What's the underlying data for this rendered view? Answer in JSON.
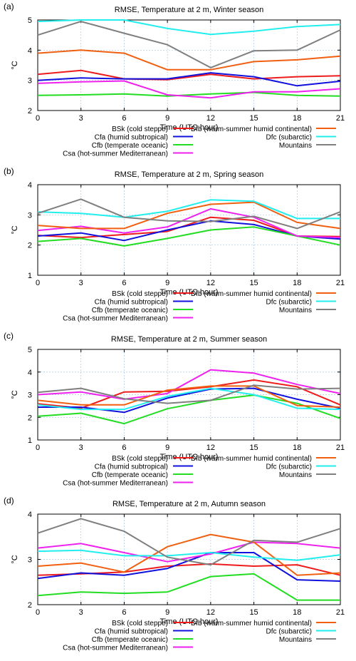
{
  "chart_data": [
    {
      "type": "line",
      "panel_label": "(a)",
      "title": "RMSE, Temperature at 2 m, Winter season",
      "xlabel": "Time (UTC hour)",
      "ylabel": "°C",
      "x": [
        0,
        3,
        6,
        9,
        12,
        15,
        18,
        21
      ],
      "xlim": [
        0,
        21
      ],
      "ylim": [
        2,
        5
      ],
      "yticks": [
        2,
        3,
        4,
        5
      ],
      "grid": true,
      "legend_position": "bottom",
      "series": [
        {
          "name": "BSk (cold steppe)",
          "color": "#ee1c1c",
          "values": [
            3.2,
            3.33,
            3.05,
            3.02,
            3.2,
            3.05,
            3.12,
            3.15
          ]
        },
        {
          "name": "Cfa (humid subtropical)",
          "color": "#1111dd",
          "values": [
            3.0,
            3.08,
            3.05,
            3.05,
            3.25,
            3.12,
            2.82,
            2.97
          ]
        },
        {
          "name": "Cfb (temperate oceanic)",
          "color": "#22dd22",
          "values": [
            2.5,
            2.52,
            2.55,
            2.48,
            2.55,
            2.6,
            2.5,
            2.48
          ]
        },
        {
          "name": "Csa (hot-summer Mediterranean)",
          "color": "#ee22ee",
          "values": [
            2.9,
            2.95,
            2.98,
            2.52,
            2.42,
            2.62,
            2.62,
            2.72
          ]
        },
        {
          "name": "Dfb (warm-summer humid continental)",
          "color": "#f06010",
          "values": [
            3.9,
            4.0,
            3.9,
            3.35,
            3.35,
            3.62,
            3.68,
            3.8
          ]
        },
        {
          "name": "Dfc (subarctic)",
          "color": "#22eeee",
          "values": [
            4.95,
            5.0,
            5.0,
            4.72,
            4.52,
            4.63,
            4.78,
            4.85
          ]
        },
        {
          "name": "Mountains",
          "color": "#7f7f7f",
          "values": [
            4.5,
            4.95,
            4.56,
            4.18,
            3.42,
            3.98,
            4.0,
            4.67
          ]
        }
      ]
    },
    {
      "type": "line",
      "panel_label": "(b)",
      "title": "RMSE, Temperature at 2 m, Spring season",
      "xlabel": "Time (UTC hour)",
      "ylabel": "°C",
      "x": [
        0,
        3,
        6,
        9,
        12,
        15,
        18,
        21
      ],
      "xlim": [
        0,
        21
      ],
      "ylim": [
        1,
        4
      ],
      "yticks": [
        1,
        2,
        3,
        4
      ],
      "grid": true,
      "legend_position": "bottom",
      "series": [
        {
          "name": "BSk (cold steppe)",
          "color": "#ee1c1c",
          "values": [
            2.32,
            2.25,
            2.35,
            2.45,
            2.92,
            2.82,
            2.3,
            2.28
          ]
        },
        {
          "name": "Cfa (humid subtropical)",
          "color": "#1111dd",
          "values": [
            2.3,
            2.4,
            2.15,
            2.5,
            2.8,
            2.68,
            2.3,
            2.2
          ]
        },
        {
          "name": "Cfb (temperate oceanic)",
          "color": "#22dd22",
          "values": [
            2.12,
            2.22,
            1.97,
            2.22,
            2.5,
            2.6,
            2.3,
            2.0
          ]
        },
        {
          "name": "Csa (hot-summer Mediterranean)",
          "color": "#ee22ee",
          "values": [
            2.48,
            2.62,
            2.4,
            2.6,
            3.2,
            2.92,
            2.3,
            2.25
          ]
        },
        {
          "name": "Dfb (warm-summer humid continental)",
          "color": "#f06010",
          "values": [
            2.65,
            2.55,
            2.55,
            3.05,
            3.35,
            3.42,
            2.75,
            2.55
          ]
        },
        {
          "name": "Dfc (subarctic)",
          "color": "#22eeee",
          "values": [
            3.1,
            3.05,
            2.92,
            3.12,
            3.5,
            3.45,
            2.88,
            2.88
          ]
        },
        {
          "name": "Mountains",
          "color": "#7f7f7f",
          "values": [
            3.05,
            3.52,
            2.92,
            2.8,
            2.78,
            2.95,
            2.55,
            3.1
          ]
        }
      ]
    },
    {
      "type": "line",
      "panel_label": "(c)",
      "title": "RMSE, Temperature at 2 m, Summer season",
      "xlabel": "Time (UTC hour)",
      "ylabel": "°C",
      "x": [
        0,
        3,
        6,
        9,
        12,
        15,
        18,
        21
      ],
      "xlim": [
        0,
        21
      ],
      "ylim": [
        1,
        5
      ],
      "yticks": [
        1,
        2,
        3,
        4,
        5
      ],
      "grid": true,
      "legend_position": "bottom",
      "series": [
        {
          "name": "BSk (cold steppe)",
          "color": "#ee1c1c",
          "values": [
            2.6,
            2.4,
            3.12,
            3.15,
            3.35,
            3.65,
            3.35,
            2.55
          ]
        },
        {
          "name": "Cfa (humid subtropical)",
          "color": "#1111dd",
          "values": [
            2.45,
            2.45,
            2.22,
            2.85,
            3.25,
            3.28,
            2.8,
            2.4
          ]
        },
        {
          "name": "Cfb (temperate oceanic)",
          "color": "#22dd22",
          "values": [
            2.05,
            2.18,
            1.72,
            2.38,
            2.75,
            2.98,
            2.62,
            1.95
          ]
        },
        {
          "name": "Csa (hot-summer Mediterranean)",
          "color": "#ee22ee",
          "values": [
            3.0,
            3.12,
            2.8,
            3.05,
            4.1,
            3.95,
            3.45,
            3.05
          ]
        },
        {
          "name": "Dfb (warm-summer humid continental)",
          "color": "#f06010",
          "values": [
            2.75,
            2.55,
            2.55,
            3.2,
            3.38,
            3.38,
            2.52,
            2.45
          ]
        },
        {
          "name": "Dfc (subarctic)",
          "color": "#22eeee",
          "values": [
            2.55,
            2.35,
            2.35,
            2.92,
            3.28,
            3.0,
            2.4,
            2.35
          ]
        },
        {
          "name": "Mountains",
          "color": "#7f7f7f",
          "values": [
            3.1,
            3.28,
            2.82,
            2.62,
            2.75,
            3.42,
            3.25,
            3.28
          ]
        }
      ]
    },
    {
      "type": "line",
      "panel_label": "(d)",
      "title": "RMSE, Temperature at 2 m, Autumn season",
      "xlabel": "Time (UTC hour)",
      "ylabel": "°C",
      "x": [
        0,
        3,
        6,
        9,
        12,
        15,
        18,
        21
      ],
      "xlim": [
        0,
        21
      ],
      "ylim": [
        2,
        4
      ],
      "yticks": [
        2,
        3,
        4
      ],
      "grid": true,
      "legend_position": "bottom",
      "series": [
        {
          "name": "BSk (cold steppe)",
          "color": "#ee1c1c",
          "values": [
            2.65,
            2.68,
            2.72,
            2.85,
            2.9,
            2.85,
            2.88,
            2.65
          ]
        },
        {
          "name": "Cfa (humid subtropical)",
          "color": "#1111dd",
          "values": [
            2.58,
            2.7,
            2.65,
            2.8,
            3.15,
            3.15,
            2.55,
            2.52
          ]
        },
        {
          "name": "Cfb (temperate oceanic)",
          "color": "#22dd22",
          "values": [
            2.2,
            2.28,
            2.25,
            2.28,
            2.62,
            2.68,
            2.1,
            2.1
          ]
        },
        {
          "name": "Csa (hot-summer Mediterranean)",
          "color": "#ee22ee",
          "values": [
            3.25,
            3.35,
            3.15,
            2.95,
            3.12,
            3.38,
            3.35,
            3.25
          ]
        },
        {
          "name": "Dfb (warm-summer humid continental)",
          "color": "#f06010",
          "values": [
            2.85,
            2.92,
            2.72,
            3.28,
            3.55,
            3.38,
            2.65,
            2.7
          ]
        },
        {
          "name": "Dfc (subarctic)",
          "color": "#22eeee",
          "values": [
            3.18,
            3.2,
            3.08,
            3.08,
            3.15,
            3.05,
            2.98,
            3.1
          ]
        },
        {
          "name": "Mountains",
          "color": "#7f7f7f",
          "values": [
            3.58,
            3.9,
            3.62,
            3.05,
            2.88,
            3.42,
            3.38,
            3.68
          ]
        }
      ]
    }
  ]
}
